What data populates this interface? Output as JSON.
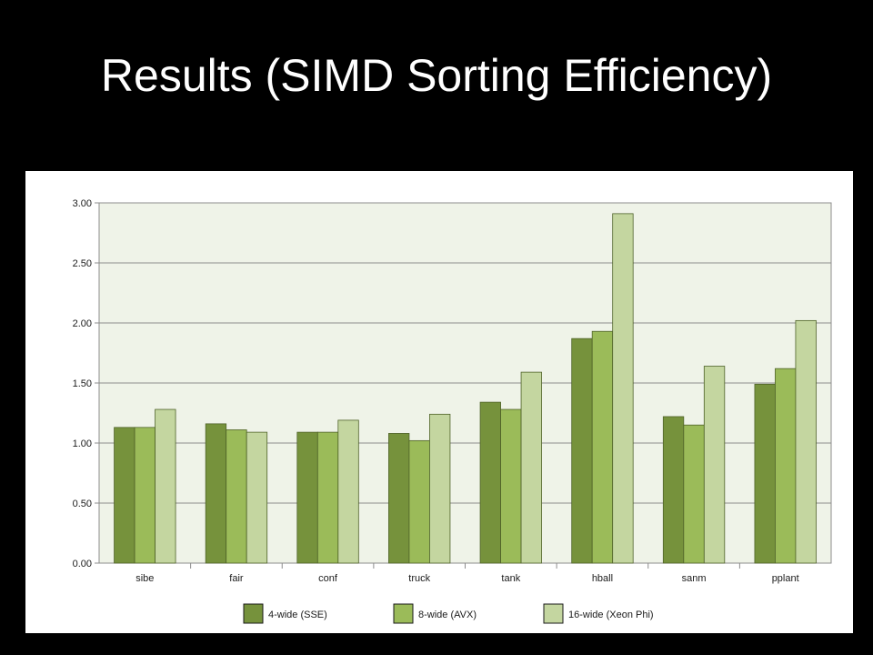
{
  "slide": {
    "title": "Results (SIMD Sorting Efficiency)"
  },
  "chart_data": {
    "type": "bar",
    "categories": [
      "sibe",
      "fair",
      "conf",
      "truck",
      "tank",
      "hball",
      "sanm",
      "pplant"
    ],
    "series": [
      {
        "name": "4-wide (SSE)",
        "color": "#76923c",
        "values": [
          1.13,
          1.16,
          1.09,
          1.08,
          1.34,
          1.87,
          1.22,
          1.49
        ]
      },
      {
        "name": "8-wide (AVX)",
        "color": "#9bbb59",
        "values": [
          1.13,
          1.11,
          1.09,
          1.02,
          1.28,
          1.93,
          1.15,
          1.62
        ]
      },
      {
        "name": "16-wide (Xeon Phi)",
        "color": "#c4d6a0",
        "values": [
          1.28,
          1.09,
          1.19,
          1.24,
          1.59,
          2.91,
          1.64,
          2.02
        ]
      }
    ],
    "yticks": [
      "0.00",
      "0.50",
      "1.00",
      "1.50",
      "2.00",
      "2.50",
      "3.00"
    ],
    "ylim": [
      0,
      3
    ],
    "grid": true,
    "legend_position": "bottom",
    "plot_background": "#eff3e8",
    "xlabel": "",
    "ylabel": ""
  }
}
